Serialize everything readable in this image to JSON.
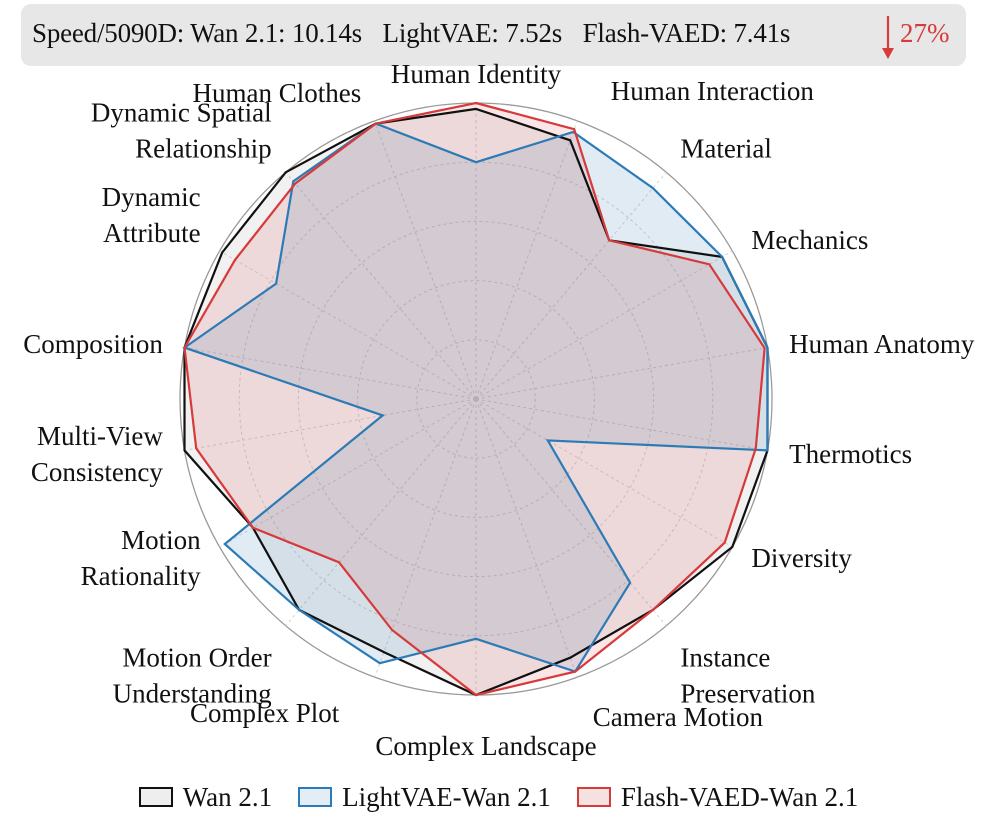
{
  "speed": {
    "items": [
      "Speed/5090D: Wan 2.1: 10.14s",
      "LightVAE: 7.52s",
      "Flash-VAED: 7.41s"
    ],
    "reduction": "27%",
    "reduction_color": "#d63a3a",
    "banner_color": "#e7e7e7"
  },
  "chart_data": {
    "type": "radar",
    "title": "",
    "grid": true,
    "rmax": 1.0,
    "grid_levels": [
      0.2,
      0.4,
      0.6,
      0.8,
      1.0
    ],
    "legend_position": "bottom",
    "categories": [
      "Human Identity",
      "Human Interaction",
      "Material",
      "Mechanics",
      "Human Anatomy",
      "Thermotics",
      "Diversity",
      "Instance Preservation",
      "Camera Motion",
      "Complex Landscape",
      "Complex Plot",
      "Motion Order Understanding",
      "Motion Rationality",
      "Multi-View Consistency",
      "Composition",
      "Dynamic Attribute",
      "Dynamic Spatial Relationship",
      "Human Clothes"
    ],
    "series": [
      {
        "name": "Wan 2.1",
        "color": "#111111",
        "fill": "rgba(120,120,120,0.10)",
        "values": [
          0.98,
          0.93,
          0.7,
          0.96,
          1.0,
          1.0,
          1.0,
          0.93,
          0.93,
          1.0,
          0.91,
          0.93,
          0.87,
          1.0,
          1.0,
          0.99,
          1.0,
          0.99
        ]
      },
      {
        "name": "LightVAE-Wan 2.1",
        "color": "#2c7bb6",
        "fill": "rgba(44,123,182,0.15)",
        "values": [
          0.8,
          0.96,
          0.93,
          0.96,
          1.0,
          1.0,
          0.28,
          0.81,
          0.98,
          0.81,
          0.95,
          0.93,
          0.98,
          0.32,
          1.0,
          0.78,
          0.96,
          0.99
        ]
      },
      {
        "name": "Flash-VAED-Wan 2.1",
        "color": "#d63a3a",
        "fill": "rgba(214,58,58,0.13)",
        "values": [
          1.0,
          0.97,
          0.7,
          0.91,
          0.99,
          0.96,
          0.97,
          0.93,
          0.98,
          1.0,
          0.83,
          0.72,
          0.87,
          0.96,
          1.0,
          0.94,
          0.95,
          0.99
        ]
      }
    ]
  },
  "legend": {
    "items": [
      {
        "name": "Wan 2.1",
        "border": "#111111",
        "bg": "#eeeeee"
      },
      {
        "name": "LightVAE-Wan 2.1",
        "border": "#2c7bb6",
        "bg": "#e3edf5"
      },
      {
        "name": "Flash-VAED-Wan 2.1",
        "border": "#d63a3a",
        "bg": "#f6e1e1"
      }
    ]
  }
}
